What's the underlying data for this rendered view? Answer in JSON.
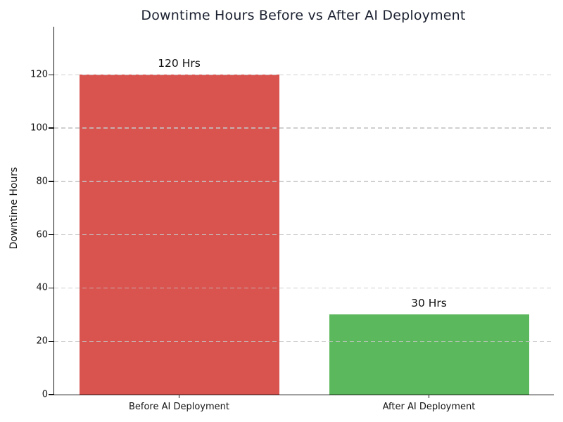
{
  "figure": {
    "title": "Downtime Hours Before vs After AI Deployment",
    "ylabel": "Downtime Hours"
  },
  "chart_data": {
    "type": "bar",
    "title": "Downtime Hours Before vs After AI Deployment",
    "xlabel": "",
    "ylabel": "Downtime Hours",
    "categories": [
      "Before AI Deployment",
      "After AI Deployment"
    ],
    "values": [
      120,
      30
    ],
    "bar_value_labels": [
      "120 Hrs",
      "30 Hrs"
    ],
    "bar_colors": [
      "#d9534f",
      "#5cb85c"
    ],
    "yticks": [
      0,
      20,
      40,
      60,
      80,
      100,
      120
    ],
    "ylim": [
      0,
      138
    ],
    "bar_width_fraction": 0.8,
    "grid": "horizontal dashed, drawn over bars",
    "grid_color": "#c4c4c4",
    "legend": "none",
    "background": "#ffffff",
    "title_color": "#1b2130",
    "axis_color": "#151515"
  }
}
